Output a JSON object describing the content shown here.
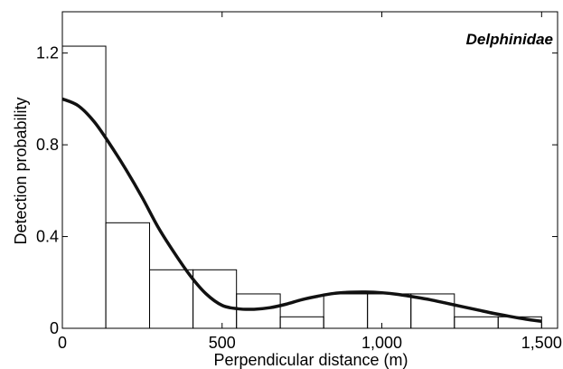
{
  "chart_data": {
    "type": "bar",
    "panel_label": "Delphinidae",
    "xlabel": "Perpendicular distance (m)",
    "ylabel": "Detection probability",
    "xlim": [
      0,
      1550
    ],
    "ylim": [
      0,
      1.38
    ],
    "x_ticks": [
      {
        "value": 0,
        "label": "0"
      },
      {
        "value": 500,
        "label": "500"
      },
      {
        "value": 1000,
        "label": "1,000"
      },
      {
        "value": 1500,
        "label": "1,500"
      }
    ],
    "y_ticks": [
      {
        "value": 0,
        "label": "0"
      },
      {
        "value": 0.4,
        "label": "0.4"
      },
      {
        "value": 0.8,
        "label": "0.8"
      },
      {
        "value": 1.2,
        "label": "1.2"
      }
    ],
    "histogram": {
      "bin_edges": [
        0,
        136,
        273,
        409,
        545,
        682,
        818,
        955,
        1091,
        1227,
        1364,
        1500
      ],
      "values": [
        1.23,
        0.46,
        0.255,
        0.255,
        0.15,
        0.05,
        0.15,
        0.15,
        0.15,
        0.05,
        0.05
      ]
    },
    "fitted_curve": {
      "x": [
        0,
        50,
        100,
        150,
        200,
        250,
        300,
        350,
        400,
        450,
        500,
        550,
        600,
        650,
        700,
        750,
        800,
        850,
        900,
        950,
        1000,
        1050,
        1100,
        1150,
        1200,
        1250,
        1300,
        1350,
        1400,
        1450,
        1500
      ],
      "y": [
        1.0,
        0.97,
        0.9,
        0.8,
        0.69,
        0.57,
        0.44,
        0.33,
        0.23,
        0.15,
        0.1,
        0.085,
        0.083,
        0.09,
        0.105,
        0.125,
        0.14,
        0.152,
        0.157,
        0.158,
        0.155,
        0.148,
        0.137,
        0.125,
        0.11,
        0.095,
        0.08,
        0.065,
        0.052,
        0.04,
        0.03
      ]
    }
  }
}
